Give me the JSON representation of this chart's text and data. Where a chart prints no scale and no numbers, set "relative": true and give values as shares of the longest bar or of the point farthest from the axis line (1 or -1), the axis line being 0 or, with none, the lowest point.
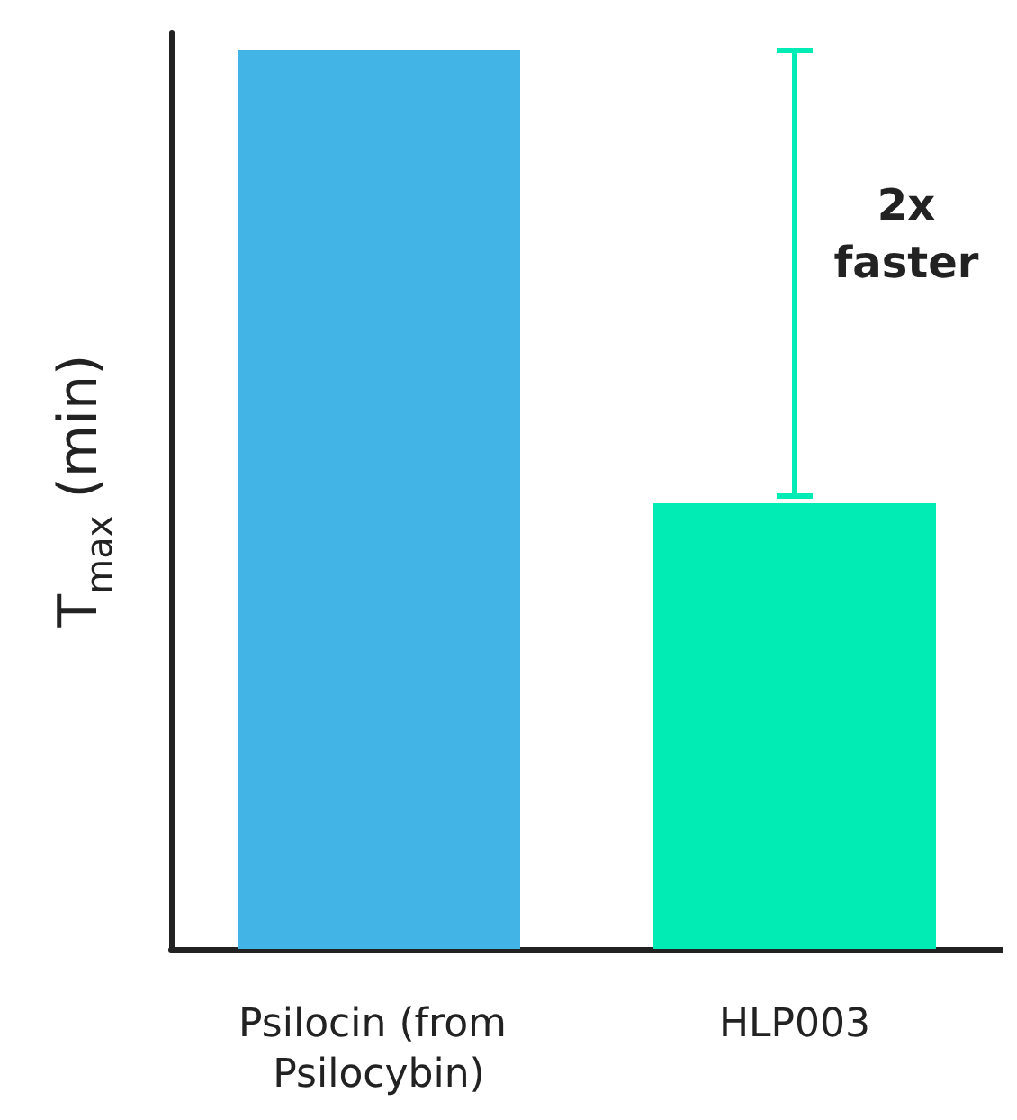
{
  "chart_data": {
    "type": "bar",
    "relative": true,
    "ylabel": "T$_{max}$ (min)",
    "categories": [
      "Psilocin (from Psilocybin)",
      "HLP003"
    ],
    "values": [
      1,
      0.496
    ],
    "colors": [
      "#42b4e6",
      "#00ecb4"
    ],
    "grid": false,
    "annotations": [
      "2x faster"
    ]
  }
}
